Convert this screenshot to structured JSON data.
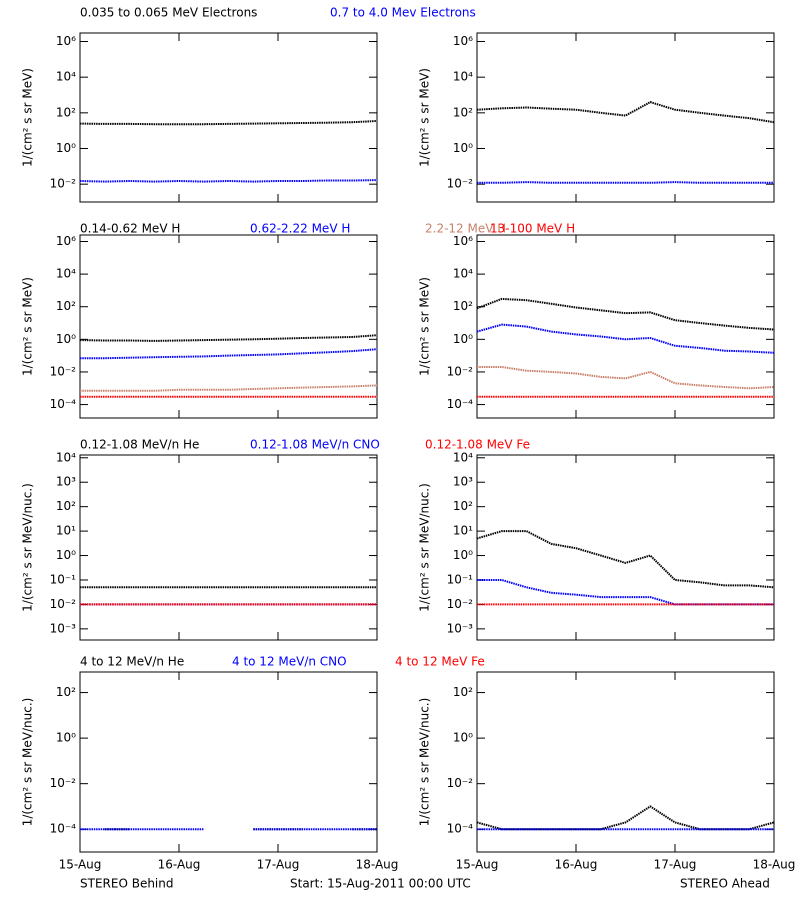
{
  "chart_data": [
    {
      "type": "line",
      "y_label": "1/(cm² s sr MeV)",
      "ylog": true,
      "xlim": [
        0,
        3
      ],
      "xticks": [
        0,
        1,
        2,
        3
      ],
      "ylim": [
        0.001,
        3000000
      ],
      "yticks": [
        {
          "value": 0.01,
          "label": "10⁻²"
        },
        {
          "value": 1,
          "label": "10⁰"
        },
        {
          "value": 100,
          "label": "10²"
        },
        {
          "value": 10000,
          "label": "10⁴"
        },
        {
          "value": 1000000,
          "label": "10⁶"
        }
      ],
      "x": [
        0,
        0.25,
        0.5,
        0.75,
        1,
        1.25,
        1.5,
        1.75,
        2,
        2.25,
        2.5,
        2.75,
        3
      ],
      "series": [
        {
          "name": "0.035 to 0.065 MeV Electrons",
          "color": "#000000",
          "values": [
            25,
            24,
            24,
            23,
            23,
            23,
            24,
            25,
            26,
            27,
            28,
            30,
            35
          ]
        },
        {
          "name": "0.7 to 4.0 Mev Electrons",
          "color": "#0000ff",
          "values": [
            0.015,
            0.014,
            0.015,
            0.014,
            0.015,
            0.014,
            0.015,
            0.014,
            0.015,
            0.015,
            0.016,
            0.016,
            0.017
          ]
        }
      ]
    },
    {
      "type": "line",
      "y_label": "1/(cm² s sr MeV)",
      "ylog": true,
      "xlim": [
        0,
        3
      ],
      "xticks": [
        0,
        1,
        2,
        3
      ],
      "ylim": [
        0.001,
        3000000
      ],
      "yticks": [
        {
          "value": 0.01,
          "label": "10⁻²"
        },
        {
          "value": 1,
          "label": "10⁰"
        },
        {
          "value": 100,
          "label": "10²"
        },
        {
          "value": 10000,
          "label": "10⁴"
        },
        {
          "value": 1000000,
          "label": "10⁶"
        }
      ],
      "x": [
        0,
        0.25,
        0.5,
        0.75,
        1,
        1.25,
        1.5,
        1.75,
        2,
        2.25,
        2.5,
        2.75,
        3
      ],
      "series": [
        {
          "color": "#000000",
          "values": [
            150,
            180,
            200,
            170,
            150,
            100,
            70,
            400,
            150,
            100,
            70,
            50,
            30
          ]
        },
        {
          "color": "#0000ff",
          "values": [
            0.012,
            0.012,
            0.013,
            0.012,
            0.012,
            0.012,
            0.012,
            0.012,
            0.013,
            0.012,
            0.012,
            0.012,
            0.012
          ]
        }
      ]
    },
    {
      "type": "line",
      "y_label": "1/(cm² s sr MeV)",
      "ylog": true,
      "xlim": [
        0,
        3
      ],
      "xticks": [
        0,
        1,
        2,
        3
      ],
      "ylim": [
        1.5e-05,
        2500000
      ],
      "yticks": [
        {
          "value": 0.0001,
          "label": "10⁻⁴"
        },
        {
          "value": 0.01,
          "label": "10⁻²"
        },
        {
          "value": 1,
          "label": "10⁰"
        },
        {
          "value": 100,
          "label": "10²"
        },
        {
          "value": 10000,
          "label": "10⁴"
        },
        {
          "value": 1000000,
          "label": "10⁶"
        }
      ],
      "x": [
        0,
        0.25,
        0.5,
        0.75,
        1,
        1.25,
        1.5,
        1.75,
        2,
        2.25,
        2.5,
        2.75,
        3
      ],
      "series": [
        {
          "name": "0.14-0.62 MeV H",
          "color": "#000000",
          "values": [
            0.9,
            0.85,
            0.85,
            0.8,
            0.85,
            0.9,
            0.95,
            1.0,
            1.1,
            1.2,
            1.3,
            1.4,
            1.8
          ]
        },
        {
          "name": "0.62-2.22 MeV H",
          "color": "#0000ff",
          "values": [
            0.07,
            0.07,
            0.075,
            0.08,
            0.085,
            0.09,
            0.1,
            0.11,
            0.12,
            0.14,
            0.16,
            0.19,
            0.25
          ]
        },
        {
          "name": "2.2-12 MeV H",
          "color": "#c8806a",
          "values": [
            0.0007,
            0.0007,
            0.0007,
            0.0007,
            0.0008,
            0.0008,
            0.0008,
            0.0009,
            0.001,
            0.0011,
            0.0012,
            0.0013,
            0.0015
          ]
        },
        {
          "name": "13-100 MeV H",
          "color": "#ff0000",
          "values": [
            0.0003,
            0.0003,
            0.0003,
            0.0003,
            0.0003,
            0.0003,
            0.0003,
            0.0003,
            0.0003,
            0.0003,
            0.0003,
            0.0003,
            0.0003
          ]
        }
      ]
    },
    {
      "type": "line",
      "y_label": "1/(cm² s sr MeV)",
      "ylog": true,
      "xlim": [
        0,
        3
      ],
      "xticks": [
        0,
        1,
        2,
        3
      ],
      "ylim": [
        1.5e-05,
        2500000
      ],
      "yticks": [
        {
          "value": 0.0001,
          "label": "10⁻⁴"
        },
        {
          "value": 0.01,
          "label": "10⁻²"
        },
        {
          "value": 1,
          "label": "10⁰"
        },
        {
          "value": 100,
          "label": "10²"
        },
        {
          "value": 10000,
          "label": "10⁴"
        },
        {
          "value": 1000000,
          "label": "10⁶"
        }
      ],
      "x": [
        0,
        0.25,
        0.5,
        0.75,
        1,
        1.25,
        1.5,
        1.75,
        2,
        2.25,
        2.5,
        2.75,
        3
      ],
      "series": [
        {
          "color": "#000000",
          "values": [
            80,
            300,
            250,
            150,
            90,
            60,
            40,
            45,
            15,
            10,
            7,
            5,
            4
          ]
        },
        {
          "color": "#0000ff",
          "values": [
            3,
            8,
            6,
            3,
            2,
            1.5,
            1,
            1.2,
            0.4,
            0.3,
            0.2,
            0.18,
            0.15
          ]
        },
        {
          "color": "#c8806a",
          "values": [
            0.02,
            0.02,
            0.012,
            0.01,
            0.008,
            0.005,
            0.004,
            0.01,
            0.002,
            0.0015,
            0.0012,
            0.001,
            0.0012
          ]
        },
        {
          "color": "#ff0000",
          "values": [
            0.0003,
            0.0003,
            0.0003,
            0.0003,
            0.0003,
            0.0003,
            0.0003,
            0.0003,
            0.0003,
            0.0003,
            0.0003,
            0.0003,
            0.0003
          ]
        }
      ]
    },
    {
      "type": "line",
      "y_label": "1/(cm² s sr MeV/nuc.)",
      "ylog": true,
      "xlim": [
        0,
        3
      ],
      "xticks": [
        0,
        1,
        2,
        3
      ],
      "ylim": [
        0.00035,
        13000
      ],
      "yticks": [
        {
          "value": 0.001,
          "label": "10⁻³"
        },
        {
          "value": 0.01,
          "label": "10⁻²"
        },
        {
          "value": 0.1,
          "label": "10⁻¹"
        },
        {
          "value": 1,
          "label": "10⁰"
        },
        {
          "value": 10,
          "label": "10¹"
        },
        {
          "value": 100,
          "label": "10²"
        },
        {
          "value": 1000,
          "label": "10³"
        },
        {
          "value": 10000,
          "label": "10⁴"
        }
      ],
      "x": [
        0,
        0.25,
        0.5,
        0.75,
        1,
        1.25,
        1.5,
        1.75,
        2,
        2.25,
        2.5,
        2.75,
        3
      ],
      "series": [
        {
          "name": "0.12-1.08 MeV/n He",
          "color": "#000000",
          "values": [
            0.05,
            0.05,
            0.05,
            0.05,
            0.05,
            0.05,
            0.05,
            0.05,
            0.05,
            0.05,
            0.05,
            0.05,
            0.05
          ]
        },
        {
          "name": "0.12-1.08 MeV/n CNO",
          "color": "#0000ff",
          "values": [
            0.01,
            0.01,
            0.01,
            0.01,
            0.01,
            0.01,
            0.01,
            0.01,
            0.01,
            0.01,
            0.01,
            0.01,
            0.01
          ]
        },
        {
          "name": "0.12-1.08 MeV Fe",
          "color": "#ff0000",
          "values": [
            0.01,
            0.01,
            0.01,
            0.01,
            0.01,
            0.01,
            0.01,
            0.01,
            0.01,
            0.01,
            0.01,
            0.01,
            0.01
          ]
        }
      ]
    },
    {
      "type": "line",
      "y_label": "1/(cm² s sr MeV/nuc.)",
      "ylog": true,
      "xlim": [
        0,
        3
      ],
      "xticks": [
        0,
        1,
        2,
        3
      ],
      "ylim": [
        0.00035,
        13000
      ],
      "yticks": [
        {
          "value": 0.001,
          "label": "10⁻³"
        },
        {
          "value": 0.01,
          "label": "10⁻²"
        },
        {
          "value": 0.1,
          "label": "10⁻¹"
        },
        {
          "value": 1,
          "label": "10⁰"
        },
        {
          "value": 10,
          "label": "10¹"
        },
        {
          "value": 100,
          "label": "10²"
        },
        {
          "value": 1000,
          "label": "10³"
        },
        {
          "value": 10000,
          "label": "10⁴"
        }
      ],
      "x": [
        0,
        0.25,
        0.5,
        0.75,
        1,
        1.25,
        1.5,
        1.75,
        2,
        2.25,
        2.5,
        2.75,
        3
      ],
      "series": [
        {
          "color": "#000000",
          "values": [
            5,
            10,
            10,
            3,
            2,
            1,
            0.5,
            1,
            0.1,
            0.08,
            0.06,
            0.06,
            0.05
          ]
        },
        {
          "color": "#0000ff",
          "values": [
            0.1,
            0.1,
            0.05,
            0.03,
            0.025,
            0.02,
            0.02,
            0.02,
            0.01,
            0.01,
            0.01,
            0.01,
            0.01
          ]
        },
        {
          "color": "#ff0000",
          "values": [
            0.01,
            0.01,
            0.01,
            0.01,
            0.01,
            0.01,
            0.01,
            0.01,
            0.01,
            0.01,
            0.01,
            0.01,
            0.01
          ]
        }
      ]
    },
    {
      "type": "line",
      "y_label": "1/(cm² s sr MeV/nuc.)",
      "ylog": true,
      "xlim": [
        0,
        3
      ],
      "xticks": [
        {
          "value": 0,
          "label": "15-Aug"
        },
        {
          "value": 1,
          "label": "16-Aug"
        },
        {
          "value": 2,
          "label": "17-Aug"
        },
        {
          "value": 3,
          "label": "18-Aug"
        }
      ],
      "ylim": [
        1e-05,
        800
      ],
      "yticks": [
        {
          "value": 0.0001,
          "label": "10⁻⁴"
        },
        {
          "value": 0.01,
          "label": "10⁻²"
        },
        {
          "value": 1,
          "label": "10⁰"
        },
        {
          "value": 100,
          "label": "10²"
        }
      ],
      "x": [
        0,
        0.25,
        0.5,
        0.75,
        1,
        1.25,
        1.5,
        1.75,
        2,
        2.25,
        2.5,
        2.75,
        3
      ],
      "series": [
        {
          "name": "4 to 12 MeV/n He",
          "color": "#000000",
          "values": [
            null,
            0.0001,
            0.0001,
            null,
            0.0001,
            null,
            null,
            0.0001,
            0.0001,
            0.0001,
            null,
            0.0001,
            0.0001
          ]
        },
        {
          "name": "4 to 12 MeV/n CNO",
          "color": "#0000ff",
          "values": [
            0.0001,
            0.0001,
            0.0001,
            0.0001,
            0.0001,
            0.0001,
            null,
            0.0001,
            0.0001,
            0.0001,
            0.0001,
            0.0001,
            0.0001
          ]
        },
        {
          "name": "4 to 12 MeV Fe",
          "color": "#ff0000",
          "values": [
            null,
            null,
            null,
            null,
            null,
            null,
            null,
            null,
            null,
            null,
            null,
            null,
            null
          ]
        }
      ]
    },
    {
      "type": "line",
      "y_label": "1/(cm² s sr MeV/nuc.)",
      "ylog": true,
      "xlim": [
        0,
        3
      ],
      "xticks": [
        {
          "value": 0,
          "label": "15-Aug"
        },
        {
          "value": 1,
          "label": "16-Aug"
        },
        {
          "value": 2,
          "label": "17-Aug"
        },
        {
          "value": 3,
          "label": "18-Aug"
        }
      ],
      "ylim": [
        1e-05,
        800
      ],
      "yticks": [
        {
          "value": 0.0001,
          "label": "10⁻⁴"
        },
        {
          "value": 0.01,
          "label": "10⁻²"
        },
        {
          "value": 1,
          "label": "10⁰"
        },
        {
          "value": 100,
          "label": "10²"
        }
      ],
      "x": [
        0,
        0.25,
        0.5,
        0.75,
        1,
        1.25,
        1.5,
        1.75,
        2,
        2.25,
        2.5,
        2.75,
        3
      ],
      "series": [
        {
          "color": "#000000",
          "values": [
            0.0002,
            0.0001,
            0.0001,
            0.0001,
            0.0001,
            0.0001,
            0.0002,
            0.001,
            0.0002,
            0.0001,
            0.0001,
            0.0001,
            0.0002
          ]
        },
        {
          "color": "#0000ff",
          "values": [
            0.0001,
            0.0001,
            0.0001,
            0.0001,
            0.0001,
            0.0001,
            0.0001,
            0.0001,
            0.0001,
            0.0001,
            0.0001,
            0.0001,
            0.0001
          ]
        },
        {
          "color": "#ff0000",
          "values": [
            null,
            null,
            null,
            null,
            null,
            null,
            null,
            null,
            null,
            null,
            null,
            null,
            null
          ]
        }
      ]
    }
  ],
  "footer": {
    "left": "STEREO Behind",
    "center": "Start: 15-Aug-2011 00:00 UTC",
    "right": "STEREO Ahead"
  }
}
